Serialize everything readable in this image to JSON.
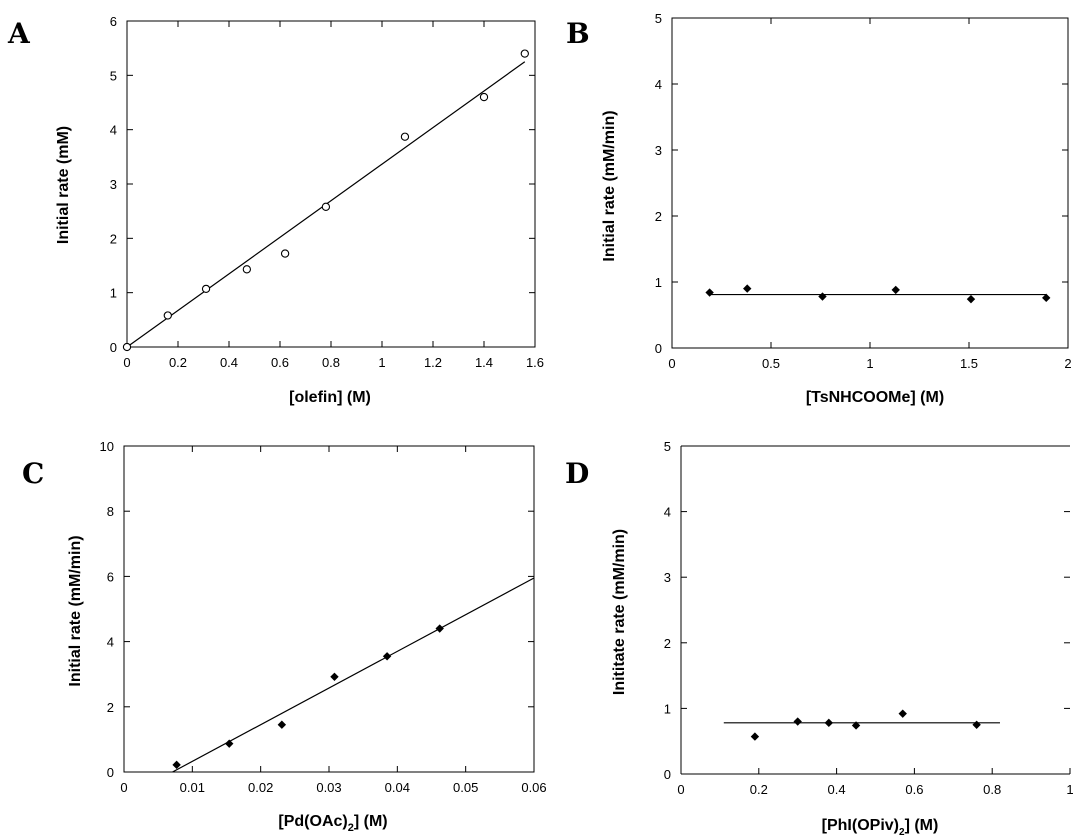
{
  "chart_data": [
    {
      "panel": "A",
      "type": "scatter",
      "xlabel": "[olefin] (M)",
      "ylabel": "Initial rate (mM)",
      "xlim": [
        0,
        1.6
      ],
      "ylim": [
        0,
        6
      ],
      "xticks": [
        0,
        0.2,
        0.4,
        0.6,
        0.8,
        1,
        1.2,
        1.4,
        1.6
      ],
      "yticks": [
        0,
        1,
        2,
        3,
        4,
        5,
        6
      ],
      "marker": "open-circle",
      "x": [
        0,
        0.16,
        0.31,
        0.47,
        0.62,
        0.78,
        1.09,
        1.4,
        1.56
      ],
      "y": [
        0,
        0.58,
        1.07,
        1.43,
        1.72,
        2.58,
        3.87,
        4.6,
        5.4
      ],
      "fit": {
        "x": [
          0,
          1.56
        ],
        "y": [
          0,
          5.25
        ]
      }
    },
    {
      "panel": "B",
      "type": "scatter",
      "xlabel": "[TsNHCOOMe] (M)",
      "ylabel": "Initial rate (mM/min)",
      "xlim": [
        0,
        2
      ],
      "ylim": [
        0,
        5
      ],
      "xticks": [
        0,
        0.5,
        1,
        1.5,
        2
      ],
      "yticks": [
        0,
        1,
        2,
        3,
        4,
        5
      ],
      "marker": "filled-diamond",
      "x": [
        0.19,
        0.38,
        0.76,
        1.13,
        1.51,
        1.89
      ],
      "y": [
        0.84,
        0.9,
        0.78,
        0.88,
        0.74,
        0.76
      ],
      "fit": {
        "x": [
          0.19,
          1.89
        ],
        "y": [
          0.81,
          0.81
        ]
      }
    },
    {
      "panel": "C",
      "type": "scatter",
      "xlabel": "[Pd(OAc)2] (M)",
      "ylabel": "Initial rate (mM/min)",
      "xlim": [
        0,
        0.06
      ],
      "ylim": [
        0,
        10
      ],
      "xticks": [
        0,
        0.01,
        0.02,
        0.03,
        0.04,
        0.05,
        0.06
      ],
      "yticks": [
        0,
        2,
        4,
        6,
        8,
        10
      ],
      "marker": "filled-diamond",
      "x": [
        0.0077,
        0.0154,
        0.0231,
        0.0308,
        0.0385,
        0.0462
      ],
      "y": [
        0.22,
        0.87,
        1.45,
        2.92,
        3.55,
        4.4
      ],
      "fit": {
        "x": [
          0.0071,
          0.06
        ],
        "y": [
          0,
          5.95
        ]
      }
    },
    {
      "panel": "D",
      "type": "scatter",
      "xlabel": "[PhI(OPiv)2] (M)",
      "ylabel": "Inititate rate (mM/min)",
      "xlim": [
        0,
        1
      ],
      "ylim": [
        0,
        5
      ],
      "xticks": [
        0,
        0.2,
        0.4,
        0.6,
        0.8,
        1
      ],
      "yticks": [
        0,
        1,
        2,
        3,
        4,
        5
      ],
      "marker": "filled-diamond",
      "x": [
        0.19,
        0.3,
        0.38,
        0.45,
        0.57,
        0.76
      ],
      "y": [
        0.57,
        0.8,
        0.78,
        0.74,
        0.92,
        0.75
      ],
      "fit": {
        "x": [
          0.11,
          0.82
        ],
        "y": [
          0.78,
          0.78
        ]
      }
    }
  ]
}
